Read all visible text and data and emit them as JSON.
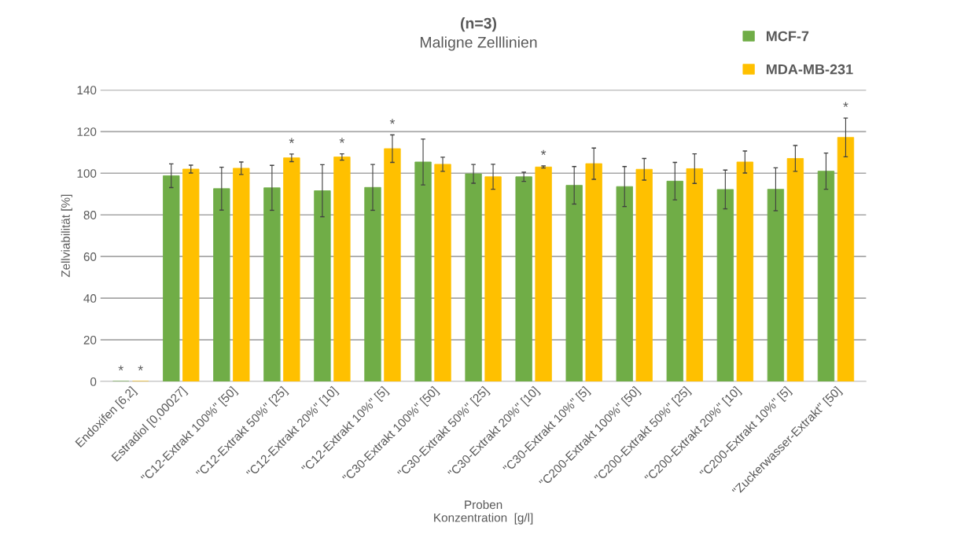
{
  "chart_data": {
    "type": "bar",
    "title": "(n=3)",
    "subtitle": "Maligne Zelllinien",
    "xlabel": "Proben\nKonzentration  [g/l]",
    "ylabel": "Zellviabilität [%]",
    "categories": [
      "Endoxifen [6,2]",
      "Estradiol [0,00027]",
      "\"C12-Extrakt 100%\" [50]",
      "\"C12-Extrakt 50%\" [25]",
      "\"C12-Extrakt 20%\" [10]",
      "\"C12-Extrakt 10%\" [5]",
      "\"C30-Extrakt 100%\" [50]",
      "\"C30-Extrakt 50%\" [25]",
      "\"C30-Extrakt 20%\" [10]",
      "\"C30-Extrakt 10%\" [5]",
      "\"C200-Extrakt 100%\" [50]",
      "\"C200-Extrakt 50%\" [25]",
      "\"C200-Extrakt 20%\" [10]",
      "\"C200-Extrakt 10%\" [5]",
      "\"Zuckerwasser-Extrakt\" [50]"
    ],
    "series": [
      {
        "name": "MCF-7",
        "color": "#70ad47",
        "values": [
          0,
          98.8,
          92.6,
          93,
          91.6,
          93.2,
          105.4,
          99.7,
          98.3,
          94.2,
          93.6,
          96.2,
          92.2,
          92.3,
          101
        ],
        "errors": [
          null,
          5.7,
          10.3,
          10.8,
          12.5,
          11,
          11,
          4.5,
          2.2,
          9,
          9.6,
          9,
          9.3,
          10.3,
          8.7
        ],
        "value_labels": [
          "*",
          null,
          null,
          null,
          null,
          null,
          null,
          null,
          null,
          null,
          null,
          null,
          null,
          null,
          null
        ]
      },
      {
        "name": "MDA-MB-231",
        "color": "#ffc000",
        "values": [
          0,
          102,
          102.4,
          107.4,
          107.8,
          111.8,
          104.3,
          98.3,
          103,
          104.6,
          101.9,
          102.2,
          105.4,
          107.1,
          117.2
        ],
        "errors": [
          null,
          1.9,
          3,
          1.8,
          1.5,
          6.6,
          3.4,
          6,
          0.5,
          7.5,
          5.2,
          7.1,
          5.3,
          6.2,
          9.3
        ],
        "value_labels": [
          "*",
          null,
          null,
          "*",
          "*",
          "*",
          null,
          null,
          "*",
          null,
          null,
          null,
          null,
          null,
          "*"
        ]
      }
    ],
    "ylim": [
      0,
      140
    ],
    "yticks": [
      0,
      20,
      40,
      60,
      80,
      100,
      120,
      140
    ],
    "grid": "y",
    "legend": "top right"
  }
}
